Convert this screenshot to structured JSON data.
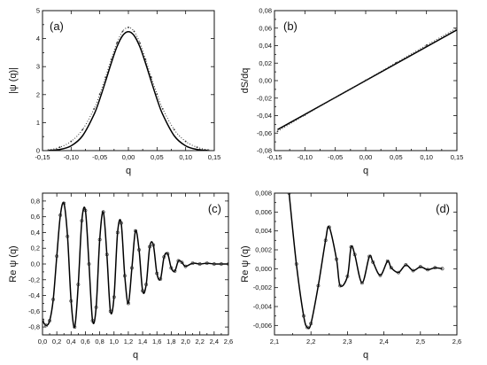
{
  "chart_data": [
    {
      "id": "a",
      "type": "line",
      "panel_label": "(a)",
      "xlabel": "q",
      "ylabel": "|ψ (q)|",
      "xlim": [
        -0.15,
        0.15
      ],
      "ylim": [
        0,
        5
      ],
      "xticks": [
        "-0,15",
        "-0,10",
        "-0,05",
        "0,00",
        "0,05",
        "0,10",
        "0,15"
      ],
      "xtick_values": [
        -0.15,
        -0.1,
        -0.05,
        0.0,
        0.05,
        0.1,
        0.15
      ],
      "yticks": [
        "0",
        "1",
        "2",
        "3",
        "4",
        "5"
      ],
      "ytick_values": [
        0,
        1,
        2,
        3,
        4,
        5
      ],
      "series": [
        {
          "style": "solid",
          "x": [
            -0.14,
            -0.12,
            -0.1,
            -0.08,
            -0.06,
            -0.05,
            -0.04,
            -0.03,
            -0.02,
            -0.01,
            0.0,
            0.01,
            0.02,
            0.03,
            0.04,
            0.05,
            0.06,
            0.08,
            0.1,
            0.12,
            0.14
          ],
          "y": [
            0.01,
            0.04,
            0.17,
            0.53,
            1.29,
            1.84,
            2.47,
            3.12,
            3.71,
            4.11,
            4.25,
            4.11,
            3.71,
            3.12,
            2.47,
            1.84,
            1.29,
            0.53,
            0.17,
            0.04,
            0.01
          ]
        },
        {
          "style": "dotted",
          "x": [
            -0.14,
            -0.12,
            -0.1,
            -0.08,
            -0.06,
            -0.05,
            -0.04,
            -0.03,
            -0.02,
            -0.01,
            0.0,
            0.01,
            0.02,
            0.03,
            0.04,
            0.05,
            0.06,
            0.08,
            0.1,
            0.12,
            0.14
          ],
          "y": [
            0.02,
            0.12,
            0.33,
            0.75,
            1.49,
            2.02,
            2.62,
            3.26,
            3.85,
            4.26,
            4.4,
            4.26,
            3.85,
            3.26,
            2.62,
            2.02,
            1.49,
            0.75,
            0.33,
            0.12,
            0.02
          ]
        }
      ]
    },
    {
      "id": "b",
      "type": "line",
      "panel_label": "(b)",
      "xlabel": "q",
      "ylabel": "dS/dq",
      "xlim": [
        -0.15,
        0.15
      ],
      "ylim": [
        -0.08,
        0.08
      ],
      "xticks": [
        "-0,15",
        "-0,10",
        "-0,05",
        "0,00",
        "0,05",
        "0,10",
        "0,15"
      ],
      "xtick_values": [
        -0.15,
        -0.1,
        -0.05,
        0.0,
        0.05,
        0.1,
        0.15
      ],
      "yticks": [
        "-0,08",
        "-0,06",
        "-0,04",
        "-0,02",
        "0,00",
        "0,02",
        "0,04",
        "0,06",
        "0,08"
      ],
      "ytick_values": [
        -0.08,
        -0.06,
        -0.04,
        -0.02,
        0.0,
        0.02,
        0.04,
        0.06,
        0.08
      ],
      "series": [
        {
          "style": "solid",
          "x": [
            -0.145,
            0.15
          ],
          "y": [
            -0.056,
            0.058
          ]
        },
        {
          "style": "dotted",
          "x": [
            -0.145,
            -0.1,
            -0.05,
            0.0,
            0.05,
            0.1,
            0.15
          ],
          "y": [
            -0.058,
            -0.0395,
            -0.0195,
            0.0005,
            0.0205,
            0.0405,
            0.06
          ]
        }
      ]
    },
    {
      "id": "c",
      "type": "line",
      "panel_label": "(c)",
      "xlabel": "q",
      "ylabel": "Re ψ (q)",
      "xlim": [
        0.0,
        2.6
      ],
      "ylim": [
        -0.9,
        0.9
      ],
      "xticks": [
        "0,0",
        "0,2",
        "0,4",
        "0,6",
        "0,8",
        "1,0",
        "1,2",
        "1,4",
        "1,6",
        "1,8",
        "2,0",
        "2,2",
        "2,4",
        "2,6"
      ],
      "xtick_values": [
        0.0,
        0.2,
        0.4,
        0.6,
        0.8,
        1.0,
        1.2,
        1.4,
        1.6,
        1.8,
        2.0,
        2.2,
        2.4,
        2.6
      ],
      "yticks": [
        "-0,8",
        "-0,6",
        "-0,4",
        "-0,2",
        "0,0",
        "0,2",
        "0,4",
        "0,6",
        "0,8"
      ],
      "ytick_values": [
        -0.8,
        -0.6,
        -0.4,
        -0.2,
        0.0,
        0.2,
        0.4,
        0.6,
        0.8
      ],
      "series": [
        {
          "style": "solid+markers",
          "x": [
            0.0,
            0.05,
            0.1,
            0.15,
            0.2,
            0.25,
            0.3,
            0.35,
            0.4,
            0.45,
            0.5,
            0.55,
            0.6,
            0.65,
            0.7,
            0.75,
            0.8,
            0.85,
            0.9,
            0.95,
            1.0,
            1.05,
            1.1,
            1.15,
            1.2,
            1.25,
            1.3,
            1.35,
            1.4,
            1.45,
            1.5,
            1.55,
            1.6,
            1.65,
            1.7,
            1.75,
            1.8,
            1.85,
            1.9,
            1.95,
            2.0,
            2.1,
            2.2,
            2.3,
            2.4,
            2.5,
            2.6
          ],
          "y": [
            -0.72,
            -0.78,
            -0.72,
            -0.45,
            0.1,
            0.62,
            0.77,
            0.35,
            -0.47,
            -0.8,
            -0.26,
            0.55,
            0.68,
            0.0,
            -0.72,
            -0.55,
            0.31,
            0.66,
            0.12,
            -0.6,
            -0.42,
            0.4,
            0.52,
            -0.15,
            -0.5,
            -0.05,
            0.42,
            0.18,
            -0.34,
            -0.26,
            0.22,
            0.24,
            -0.12,
            -0.19,
            0.09,
            0.13,
            -0.05,
            -0.09,
            0.04,
            0.02,
            -0.03,
            0.01,
            0.0,
            0.01,
            0.0,
            0.0,
            0.0
          ]
        }
      ]
    },
    {
      "id": "d",
      "type": "line",
      "panel_label": "(d)",
      "xlabel": "q",
      "ylabel": "Re ψ (q)",
      "xlim": [
        2.1,
        2.6
      ],
      "ylim": [
        -0.007,
        0.008
      ],
      "xticks": [
        "2,1",
        "2,2",
        "2,3",
        "2,4",
        "2,5",
        "2,6"
      ],
      "xtick_values": [
        2.1,
        2.2,
        2.3,
        2.4,
        2.5,
        2.6
      ],
      "yticks": [
        "-0,006",
        "-0,004",
        "-0,002",
        "0,000",
        "0,002",
        "0,004",
        "0,006",
        "0,008"
      ],
      "ytick_values": [
        -0.006,
        -0.004,
        -0.002,
        0.0,
        0.002,
        0.004,
        0.006,
        0.008
      ],
      "series": [
        {
          "style": "solid+markers",
          "x": [
            2.14,
            2.16,
            2.18,
            2.19,
            2.2,
            2.22,
            2.24,
            2.25,
            2.27,
            2.28,
            2.3,
            2.31,
            2.32,
            2.34,
            2.36,
            2.37,
            2.39,
            2.41,
            2.42,
            2.44,
            2.46,
            2.48,
            2.5,
            2.52,
            2.54,
            2.56
          ],
          "y": [
            0.008,
            0.0005,
            -0.005,
            -0.0062,
            -0.0058,
            -0.0018,
            0.003,
            0.0044,
            0.001,
            -0.0018,
            -0.0008,
            0.0023,
            0.0015,
            -0.0015,
            0.0013,
            0.0007,
            -0.0007,
            0.0008,
            0.0001,
            -0.0004,
            0.0004,
            -0.0002,
            0.0002,
            -0.0001,
            0.0001,
            0.0
          ]
        }
      ]
    }
  ]
}
